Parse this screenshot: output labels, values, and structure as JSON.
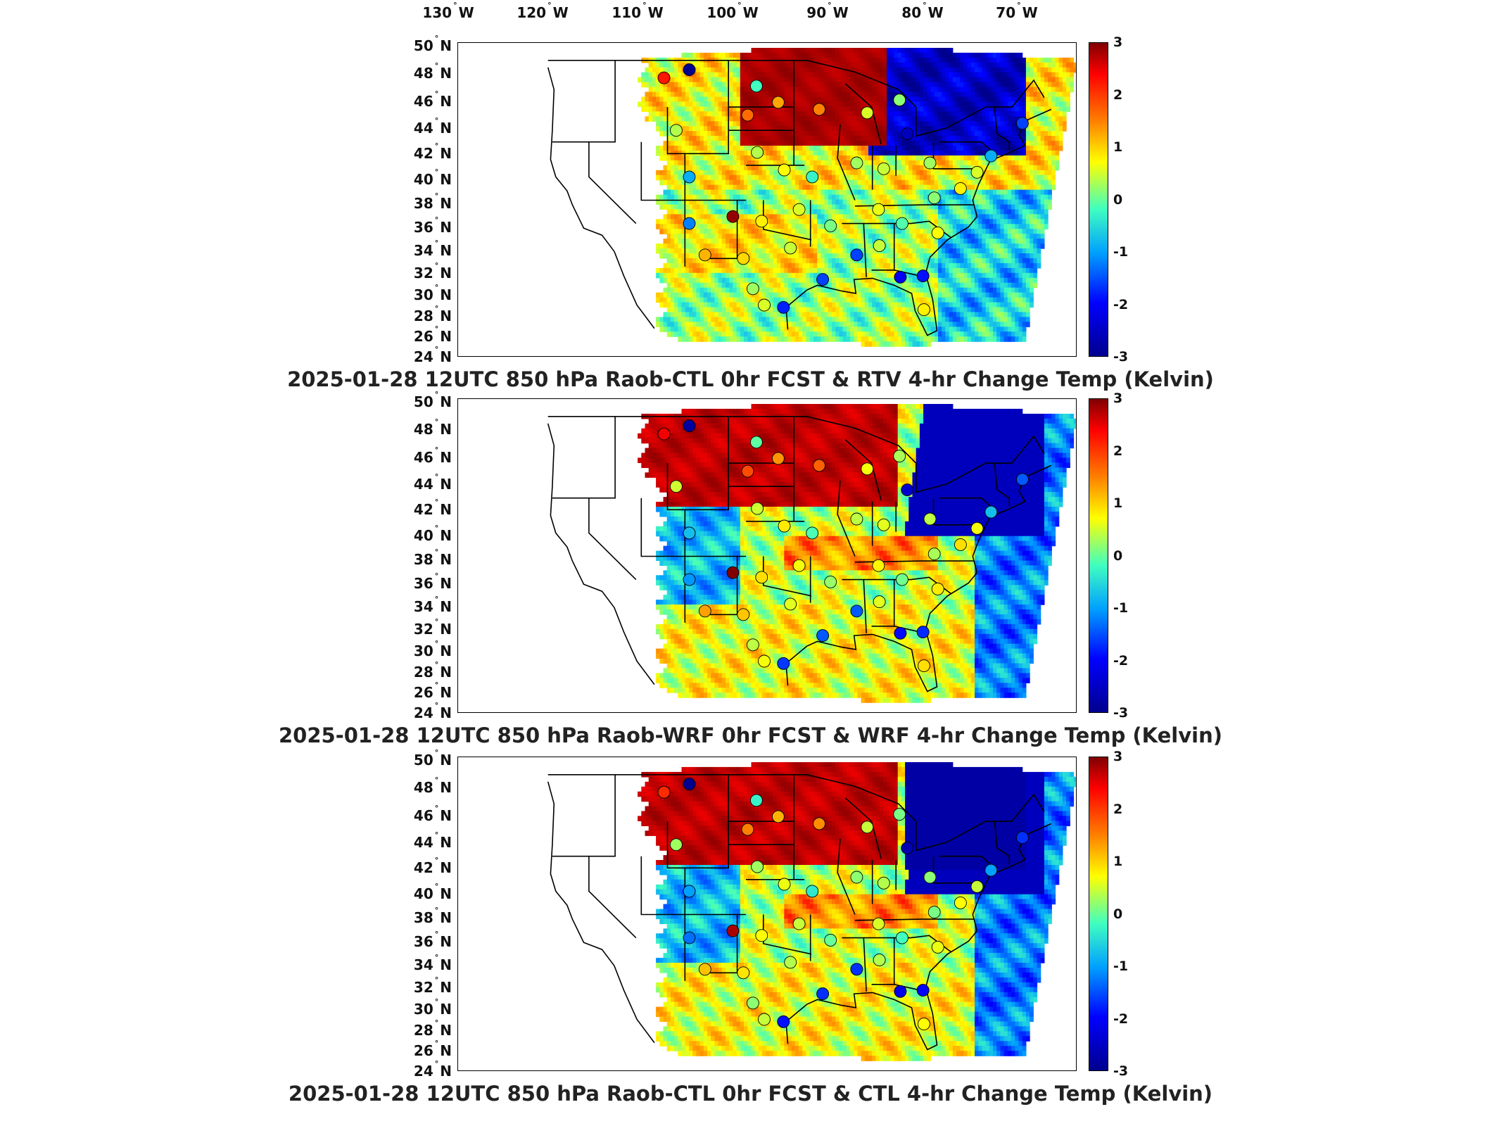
{
  "lon_labels": [
    "130",
    "120",
    "110",
    "100",
    "90",
    "80",
    "70"
  ],
  "lat_labels": [
    "50",
    "48",
    "46",
    "44",
    "42",
    "40",
    "38",
    "36",
    "34",
    "32",
    "30",
    "28",
    "26",
    "24"
  ],
  "lon_suffix": "W",
  "lat_suffix": "N",
  "colorbar": {
    "ticks": [
      "3",
      "2",
      "1",
      "0",
      "-1",
      "-2",
      "-3"
    ],
    "range": [
      -3,
      3
    ],
    "colors": [
      "#00008f",
      "#0000ff",
      "#00a0ff",
      "#40ffbf",
      "#ffff00",
      "#ff8000",
      "#ff0000",
      "#800000"
    ]
  },
  "panels": [
    {
      "title": "2025-01-28 12UTC 850 hPa Raob-CTL 0hr FCST & RTV 4-hr Change Temp (Kelvin)",
      "pattern": "rtv"
    },
    {
      "title": "2025-01-28 12UTC 850 hPa Raob-WRF 0hr FCST & WRF 4-hr Change Temp (Kelvin)",
      "pattern": "wrf"
    },
    {
      "title": "2025-01-28 12UTC 850 hPa Raob-CTL 0hr FCST & CTL 4-hr Change Temp (Kelvin)",
      "pattern": "ctl"
    }
  ]
}
